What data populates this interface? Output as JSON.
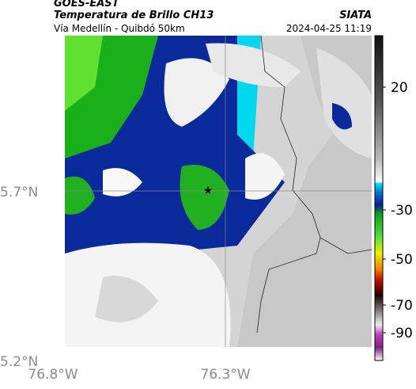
{
  "header": {
    "satellite": "GOES-EAST",
    "product": "Temperatura de Brillo CH13",
    "source": "SIATA",
    "route": "Vía Medellín - Quibdó 50km",
    "timestamp": "2024-04-25 11:19"
  },
  "axes": {
    "lat_labels": [
      "5.7°N",
      "5.2°N"
    ],
    "lon_labels": [
      "76.8°W",
      "76.3°W"
    ]
  },
  "colorbar": {
    "ticks": [
      "20",
      "-30",
      "-50",
      "-70",
      "-90"
    ]
  }
}
